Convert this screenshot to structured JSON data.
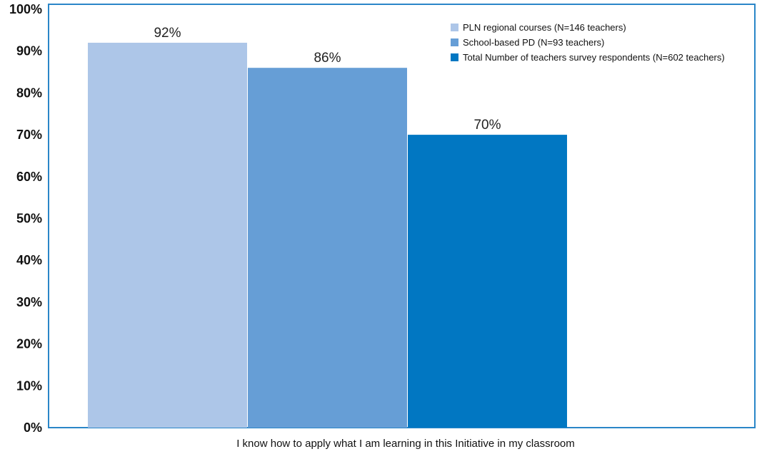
{
  "chart_data": {
    "type": "bar",
    "categories": [
      "I know how to apply what I am learning in this Initiative in my classroom"
    ],
    "xlabel": "I know how to apply what I am learning in this Initiative in my classroom",
    "ylabel": "",
    "ylim": [
      0,
      100
    ],
    "yticks": [
      "0%",
      "10%",
      "20%",
      "30%",
      "40%",
      "50%",
      "60%",
      "70%",
      "80%",
      "90%",
      "100%"
    ],
    "grid": false,
    "legend_position": "top-right",
    "series": [
      {
        "name": "PLN regional courses (N=146 teachers)",
        "values": [
          92
        ],
        "label": "92%",
        "color": "#adc6e8"
      },
      {
        "name": "School-based PD (N=93 teachers)",
        "values": [
          86
        ],
        "label": "86%",
        "color": "#669ed6"
      },
      {
        "name": "Total Number of teachers survey respondents (N=602 teachers)",
        "values": [
          70
        ],
        "label": "70%",
        "color": "#0177c2"
      }
    ],
    "frame_color": "#2a86c8"
  }
}
